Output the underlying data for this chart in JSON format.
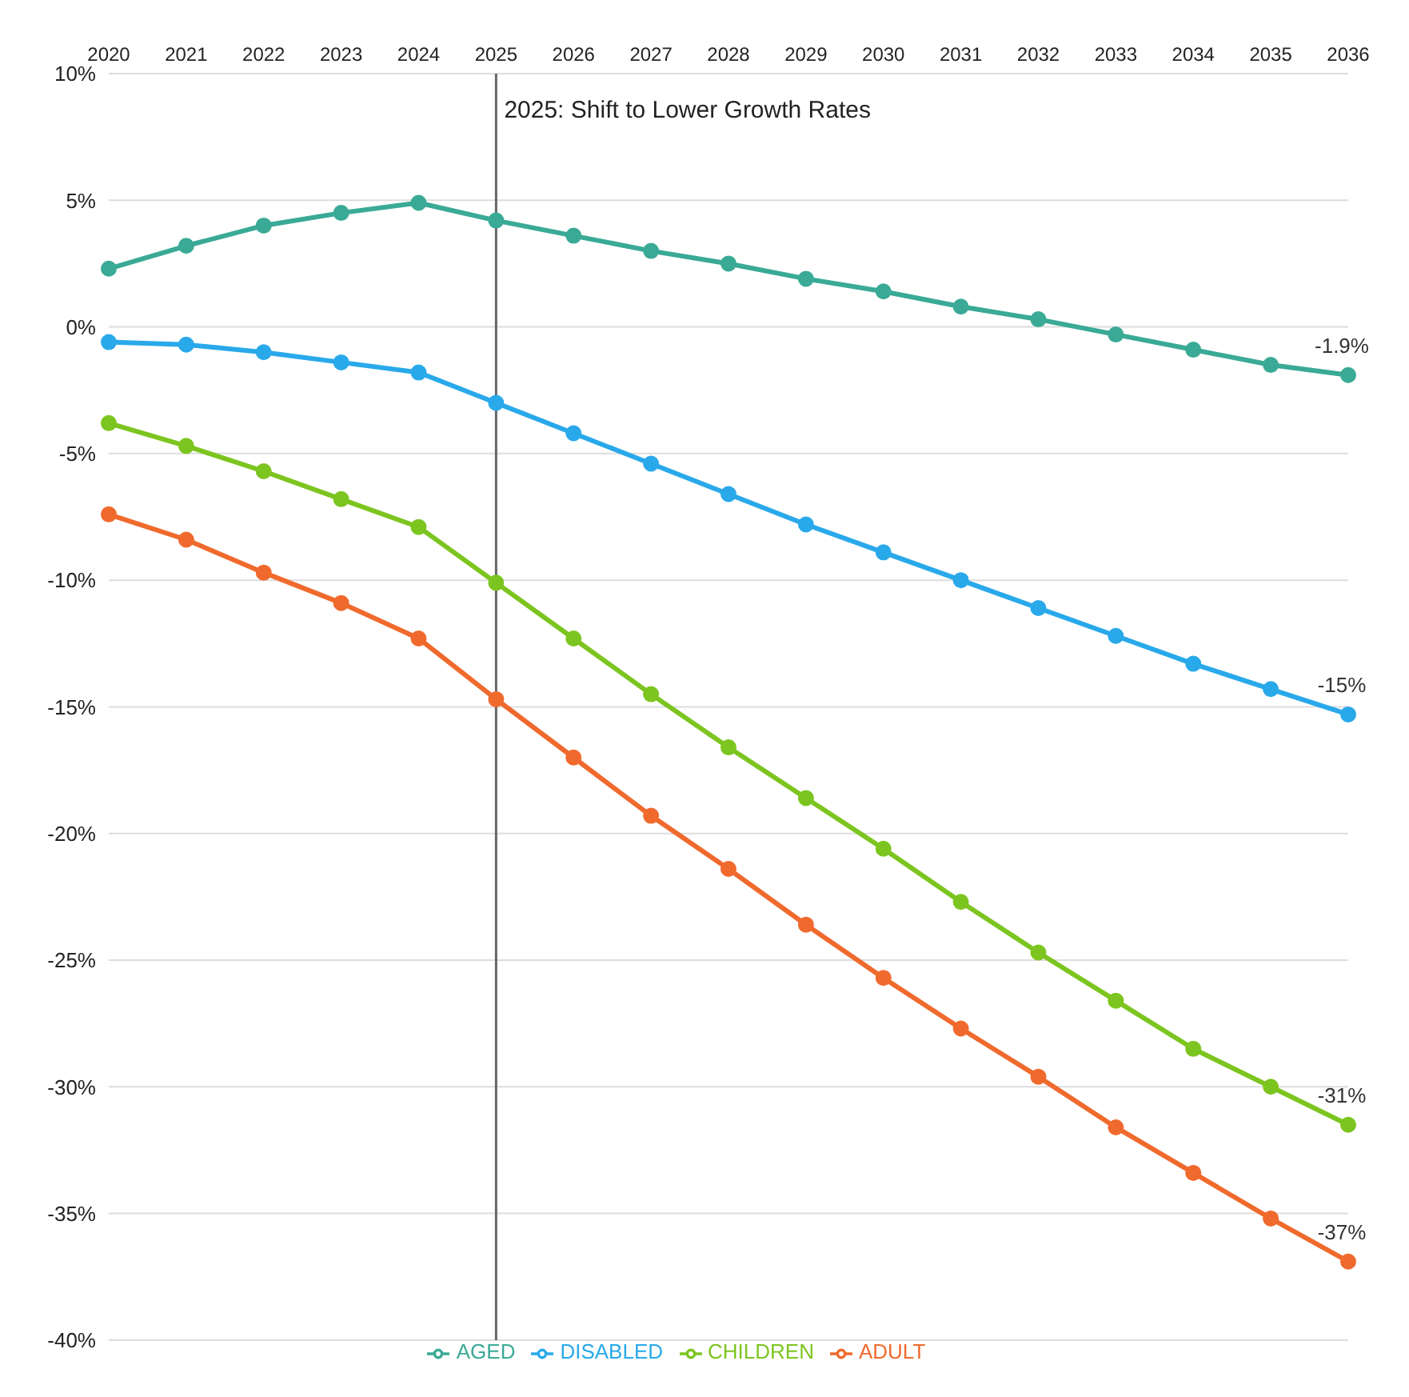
{
  "chart_data": {
    "type": "line",
    "categories": [
      "2020",
      "2021",
      "2022",
      "2023",
      "2024",
      "2025",
      "2026",
      "2027",
      "2028",
      "2029",
      "2030",
      "2031",
      "2032",
      "2033",
      "2034",
      "2035",
      "2036"
    ],
    "series": [
      {
        "name": "AGED",
        "color": "#3aaa96",
        "values": [
          2.3,
          3.2,
          4.0,
          4.5,
          4.9,
          4.2,
          3.6,
          3.0,
          2.5,
          1.9,
          1.4,
          0.8,
          0.3,
          -0.3,
          -0.9,
          -1.5,
          -1.9
        ],
        "value_labels": [
          null,
          null,
          null,
          null,
          null,
          null,
          null,
          null,
          null,
          null,
          null,
          null,
          null,
          null,
          null,
          null,
          "-1.9%"
        ]
      },
      {
        "name": "DISABLED",
        "color": "#29a9ea",
        "values": [
          -0.6,
          -0.7,
          -1.0,
          -1.4,
          -1.8,
          -3.0,
          -4.2,
          -5.4,
          -6.6,
          -7.8,
          -8.9,
          -10.0,
          -11.1,
          -12.2,
          -13.3,
          -14.3,
          -15.3
        ],
        "value_labels": [
          null,
          null,
          null,
          null,
          null,
          null,
          null,
          null,
          null,
          null,
          null,
          null,
          null,
          null,
          null,
          null,
          "-15%"
        ]
      },
      {
        "name": "CHILDREN",
        "color": "#7cc520",
        "values": [
          -3.8,
          -4.7,
          -5.7,
          -6.8,
          -7.9,
          -10.1,
          -12.3,
          -14.5,
          -16.6,
          -18.6,
          -20.6,
          -22.7,
          -24.7,
          -26.6,
          -28.5,
          -30.0,
          -31.5
        ],
        "value_labels": [
          null,
          null,
          null,
          null,
          null,
          null,
          null,
          null,
          null,
          null,
          null,
          null,
          null,
          null,
          null,
          null,
          "-31%"
        ]
      },
      {
        "name": "ADULT",
        "color": "#f06a2d",
        "values": [
          -7.4,
          -8.4,
          -9.7,
          -10.9,
          -12.3,
          -14.7,
          -17.0,
          -19.3,
          -21.4,
          -23.6,
          -25.7,
          -27.7,
          -29.6,
          -31.6,
          -33.4,
          -35.2,
          -36.9
        ],
        "value_labels": [
          null,
          null,
          null,
          null,
          null,
          null,
          null,
          null,
          null,
          null,
          null,
          null,
          null,
          null,
          null,
          null,
          "-37%"
        ]
      }
    ],
    "ylim": [
      -40,
      10
    ],
    "yticks": [
      {
        "value": 10,
        "label": "10%"
      },
      {
        "value": 5,
        "label": "5%"
      },
      {
        "value": 0,
        "label": "0%"
      },
      {
        "value": -5,
        "label": "-5%"
      },
      {
        "value": -10,
        "label": "-10%"
      },
      {
        "value": -15,
        "label": "-15%"
      },
      {
        "value": -20,
        "label": "-20%"
      },
      {
        "value": -25,
        "label": "-25%"
      },
      {
        "value": -30,
        "label": "-30%"
      },
      {
        "value": -35,
        "label": "-35%"
      },
      {
        "value": -40,
        "label": "-40%"
      }
    ],
    "ref_lines": [
      {
        "axis": "x",
        "value": "2025",
        "label": "2025: Shift to Lower Growth Rates",
        "color": "#666666"
      }
    ],
    "grid": "y",
    "legend": "bottom",
    "marker": "circle",
    "line_style": "solid"
  }
}
